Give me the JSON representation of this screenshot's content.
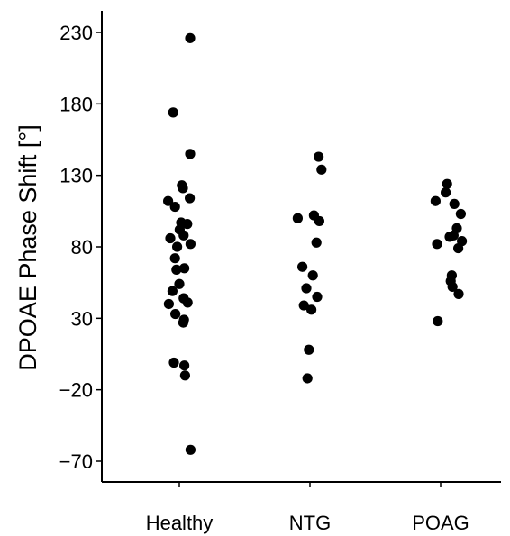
{
  "chart_data": {
    "type": "scatter",
    "ylabel": "DPOAE Phase Shift [°]",
    "xlabel": "",
    "title": "",
    "categories": [
      "Healthy",
      "NTG",
      "POAG"
    ],
    "yticks": [
      230,
      180,
      130,
      80,
      30,
      -20,
      -70
    ],
    "ytick_labels": [
      "230",
      "180",
      "130",
      "80",
      "30",
      "−20",
      "−70"
    ],
    "ylim": [
      -85,
      245
    ],
    "grid": false,
    "legend": "none",
    "point_color": "#000000",
    "series": [
      {
        "category": "Healthy",
        "points": [
          {
            "jitter": 0.3,
            "y": 226
          },
          {
            "jitter": -0.17,
            "y": 174
          },
          {
            "jitter": 0.3,
            "y": 145
          },
          {
            "jitter": 0.07,
            "y": 123
          },
          {
            "jitter": 0.1,
            "y": 121
          },
          {
            "jitter": -0.31,
            "y": 112
          },
          {
            "jitter": 0.29,
            "y": 114
          },
          {
            "jitter": -0.12,
            "y": 108
          },
          {
            "jitter": 0.05,
            "y": 97
          },
          {
            "jitter": 0.22,
            "y": 96
          },
          {
            "jitter": 0.01,
            "y": 92
          },
          {
            "jitter": 0.12,
            "y": 88
          },
          {
            "jitter": -0.25,
            "y": 86
          },
          {
            "jitter": -0.06,
            "y": 80
          },
          {
            "jitter": 0.31,
            "y": 82
          },
          {
            "jitter": -0.12,
            "y": 72
          },
          {
            "jitter": -0.08,
            "y": 64
          },
          {
            "jitter": 0.14,
            "y": 65
          },
          {
            "jitter": 0.0,
            "y": 54
          },
          {
            "jitter": -0.19,
            "y": 49
          },
          {
            "jitter": 0.12,
            "y": 44
          },
          {
            "jitter": -0.29,
            "y": 40
          },
          {
            "jitter": 0.23,
            "y": 41
          },
          {
            "jitter": -0.11,
            "y": 33
          },
          {
            "jitter": 0.13,
            "y": 29
          },
          {
            "jitter": 0.11,
            "y": 27
          },
          {
            "jitter": -0.15,
            "y": -1
          },
          {
            "jitter": 0.14,
            "y": -3
          },
          {
            "jitter": 0.16,
            "y": -10
          },
          {
            "jitter": 0.31,
            "y": -62
          }
        ]
      },
      {
        "category": "NTG",
        "points": [
          {
            "jitter": 0.24,
            "y": 143
          },
          {
            "jitter": 0.32,
            "y": 134
          },
          {
            "jitter": -0.34,
            "y": 100
          },
          {
            "jitter": 0.11,
            "y": 102
          },
          {
            "jitter": 0.26,
            "y": 98
          },
          {
            "jitter": 0.18,
            "y": 83
          },
          {
            "jitter": -0.21,
            "y": 66
          },
          {
            "jitter": 0.08,
            "y": 60
          },
          {
            "jitter": -0.1,
            "y": 51
          },
          {
            "jitter": 0.2,
            "y": 45
          },
          {
            "jitter": -0.17,
            "y": 39
          },
          {
            "jitter": 0.04,
            "y": 36
          },
          {
            "jitter": -0.03,
            "y": 8
          },
          {
            "jitter": -0.07,
            "y": -12
          }
        ]
      },
      {
        "category": "POAG",
        "points": [
          {
            "jitter": 0.18,
            "y": 124
          },
          {
            "jitter": 0.14,
            "y": 118
          },
          {
            "jitter": -0.14,
            "y": 112
          },
          {
            "jitter": 0.38,
            "y": 110
          },
          {
            "jitter": 0.56,
            "y": 103
          },
          {
            "jitter": 0.45,
            "y": 93
          },
          {
            "jitter": 0.25,
            "y": 87
          },
          {
            "jitter": 0.36,
            "y": 88
          },
          {
            "jitter": 0.59,
            "y": 84
          },
          {
            "jitter": -0.1,
            "y": 82
          },
          {
            "jitter": 0.49,
            "y": 79
          },
          {
            "jitter": 0.31,
            "y": 60
          },
          {
            "jitter": 0.28,
            "y": 56
          },
          {
            "jitter": 0.33,
            "y": 52
          },
          {
            "jitter": 0.5,
            "y": 47
          },
          {
            "jitter": -0.08,
            "y": 28
          }
        ]
      }
    ]
  }
}
